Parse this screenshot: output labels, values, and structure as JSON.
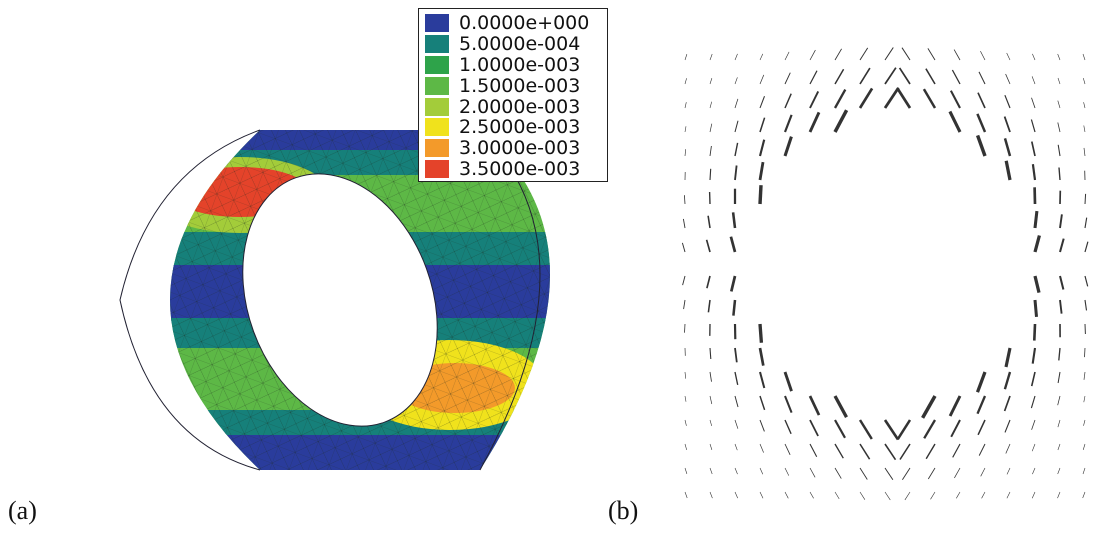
{
  "panels": [
    {
      "label": "(a)"
    },
    {
      "label": "(b)"
    }
  ],
  "legend": [
    {
      "value": "0.0000e+000",
      "color": "#2a3c9c"
    },
    {
      "value": "5.0000e-004",
      "color": "#16807a"
    },
    {
      "value": "1.0000e-003",
      "color": "#2ea34a"
    },
    {
      "value": "1.5000e-003",
      "color": "#5db846"
    },
    {
      "value": "2.0000e-003",
      "color": "#a3cc3a"
    },
    {
      "value": "2.5000e-003",
      "color": "#f0e21c"
    },
    {
      "value": "3.0000e-003",
      "color": "#f39a2a"
    },
    {
      "value": "3.5000e-003",
      "color": "#e4432a"
    }
  ]
}
